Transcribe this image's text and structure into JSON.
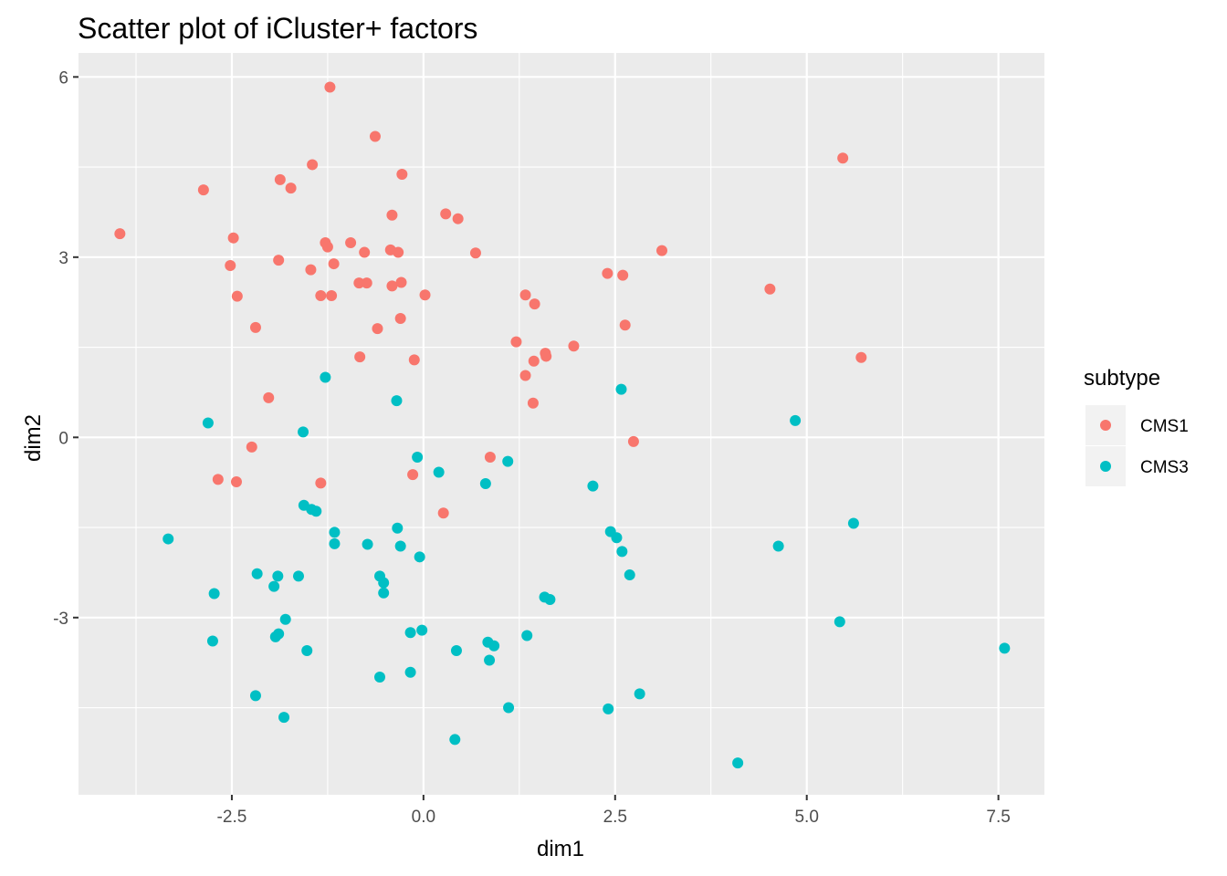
{
  "chart_data": {
    "type": "scatter",
    "title": "Scatter plot of iCluster+ factors",
    "xlabel": "dim1",
    "ylabel": "dim2",
    "xlim": [
      -4.5,
      8.1
    ],
    "ylim": [
      -5.95,
      6.4
    ],
    "x_ticks": [
      -2.5,
      0.0,
      2.5,
      5.0,
      7.5
    ],
    "x_tick_labels": [
      "-2.5",
      "0.0",
      "2.5",
      "5.0",
      "7.5"
    ],
    "y_ticks": [
      -3,
      0,
      3,
      6
    ],
    "y_tick_labels": [
      "-3",
      "0",
      "3",
      "6"
    ],
    "grid": true,
    "legend": {
      "title": "subtype",
      "position": "right"
    },
    "colors": {
      "panel": "#ebebeb",
      "grid": "#ffffff",
      "CMS1": "#F8766D",
      "CMS3": "#00BFC4"
    },
    "series": [
      {
        "name": "CMS1",
        "color": "#F8766D",
        "points": [
          [
            -3.96,
            3.39
          ],
          [
            -2.87,
            4.12
          ],
          [
            -2.48,
            3.32
          ],
          [
            -2.52,
            2.86
          ],
          [
            -2.43,
            2.35
          ],
          [
            -2.19,
            1.83
          ],
          [
            -2.02,
            0.66
          ],
          [
            -2.24,
            -0.16
          ],
          [
            -2.68,
            -0.7
          ],
          [
            -2.44,
            -0.74
          ],
          [
            -1.87,
            4.29
          ],
          [
            -1.73,
            4.15
          ],
          [
            -1.45,
            4.54
          ],
          [
            -1.89,
            2.95
          ],
          [
            -1.47,
            2.79
          ],
          [
            -1.34,
            2.36
          ],
          [
            -1.22,
            5.83
          ],
          [
            -1.28,
            3.24
          ],
          [
            -1.25,
            3.17
          ],
          [
            -1.17,
            2.89
          ],
          [
            -1.2,
            2.36
          ],
          [
            -0.95,
            3.24
          ],
          [
            -0.77,
            3.08
          ],
          [
            -0.84,
            2.57
          ],
          [
            -0.74,
            2.57
          ],
          [
            -0.63,
            5.01
          ],
          [
            -0.6,
            1.81
          ],
          [
            -0.83,
            1.34
          ],
          [
            -0.28,
            4.38
          ],
          [
            -0.41,
            3.7
          ],
          [
            -0.43,
            3.12
          ],
          [
            -0.33,
            3.08
          ],
          [
            -0.29,
            2.58
          ],
          [
            -0.41,
            2.52
          ],
          [
            -0.3,
            1.98
          ],
          [
            0.02,
            2.37
          ],
          [
            -0.12,
            1.29
          ],
          [
            -1.34,
            -0.76
          ],
          [
            -0.14,
            -0.62
          ],
          [
            0.29,
            3.72
          ],
          [
            0.45,
            3.64
          ],
          [
            0.68,
            3.07
          ],
          [
            0.26,
            -1.26
          ],
          [
            0.87,
            -0.33
          ],
          [
            1.21,
            1.59
          ],
          [
            1.33,
            2.37
          ],
          [
            1.45,
            2.22
          ],
          [
            1.33,
            1.03
          ],
          [
            1.44,
            1.27
          ],
          [
            1.59,
            1.4
          ],
          [
            1.6,
            1.35
          ],
          [
            1.43,
            0.57
          ],
          [
            1.96,
            1.52
          ],
          [
            2.4,
            2.73
          ],
          [
            2.6,
            2.7
          ],
          [
            2.63,
            1.87
          ],
          [
            2.74,
            -0.07
          ],
          [
            3.11,
            3.11
          ],
          [
            4.52,
            2.47
          ],
          [
            5.47,
            4.65
          ],
          [
            5.71,
            1.33
          ]
        ]
      },
      {
        "name": "CMS3",
        "color": "#00BFC4",
        "points": [
          [
            -3.33,
            -1.69
          ],
          [
            -2.81,
            0.24
          ],
          [
            -2.73,
            -2.6
          ],
          [
            -2.75,
            -3.39
          ],
          [
            -2.17,
            -2.27
          ],
          [
            -2.19,
            -4.3
          ],
          [
            -1.95,
            -2.48
          ],
          [
            -1.9,
            -2.31
          ],
          [
            -1.93,
            -3.32
          ],
          [
            -1.89,
            -3.27
          ],
          [
            -1.8,
            -3.03
          ],
          [
            -1.82,
            -4.66
          ],
          [
            -1.63,
            -2.31
          ],
          [
            -1.56,
            -1.13
          ],
          [
            -1.57,
            0.09
          ],
          [
            -1.52,
            -3.55
          ],
          [
            -1.46,
            -1.2
          ],
          [
            -1.4,
            -1.23
          ],
          [
            -1.28,
            1.0
          ],
          [
            -1.16,
            -1.58
          ],
          [
            -1.16,
            -1.77
          ],
          [
            -0.73,
            -1.78
          ],
          [
            -0.57,
            -2.31
          ],
          [
            -0.52,
            -2.42
          ],
          [
            -0.52,
            -2.59
          ],
          [
            -0.57,
            -3.99
          ],
          [
            -0.35,
            0.61
          ],
          [
            -0.34,
            -1.51
          ],
          [
            -0.3,
            -1.81
          ],
          [
            -0.17,
            -3.25
          ],
          [
            -0.17,
            -3.91
          ],
          [
            -0.08,
            -0.33
          ],
          [
            -0.05,
            -1.99
          ],
          [
            -0.02,
            -3.21
          ],
          [
            0.2,
            -0.58
          ],
          [
            0.43,
            -3.55
          ],
          [
            0.41,
            -5.03
          ],
          [
            0.81,
            -0.77
          ],
          [
            0.84,
            -3.41
          ],
          [
            0.86,
            -3.71
          ],
          [
            0.92,
            -3.47
          ],
          [
            1.1,
            -0.4
          ],
          [
            1.11,
            -4.5
          ],
          [
            1.35,
            -3.3
          ],
          [
            1.58,
            -2.66
          ],
          [
            1.65,
            -2.7
          ],
          [
            2.21,
            -0.81
          ],
          [
            2.44,
            -1.57
          ],
          [
            2.52,
            -1.67
          ],
          [
            2.58,
            0.8
          ],
          [
            2.59,
            -1.9
          ],
          [
            2.69,
            -2.29
          ],
          [
            2.41,
            -4.52
          ],
          [
            2.82,
            -4.27
          ],
          [
            4.1,
            -5.42
          ],
          [
            4.63,
            -1.81
          ],
          [
            4.85,
            0.28
          ],
          [
            5.61,
            -1.43
          ],
          [
            5.43,
            -3.07
          ],
          [
            7.58,
            -3.51
          ]
        ]
      }
    ]
  }
}
